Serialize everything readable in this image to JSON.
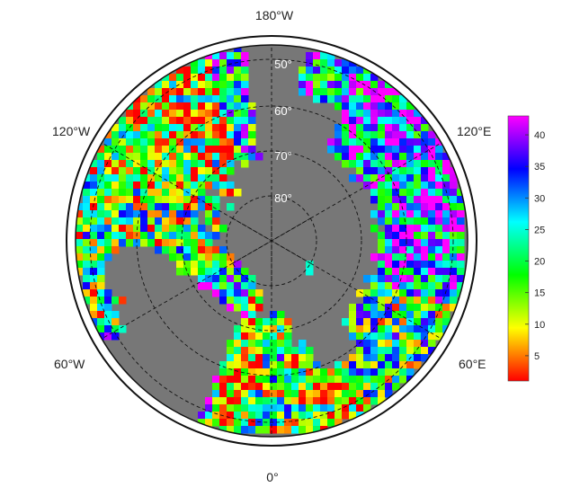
{
  "map": {
    "projection": "polar-stereographic-north",
    "ocean_color": "#777777",
    "land_no_data_color": "#777777",
    "longitude_labels": [
      {
        "key": "top",
        "text": "180°W"
      },
      {
        "key": "upper_left",
        "text": "120°W"
      },
      {
        "key": "upper_right",
        "text": "120°E"
      },
      {
        "key": "lower_left",
        "text": "60°W"
      },
      {
        "key": "lower_right",
        "text": "60°E"
      },
      {
        "key": "bottom",
        "text": "0°"
      }
    ],
    "latitude_labels": [
      "50°",
      "60°",
      "70°",
      "80°"
    ],
    "graticule": {
      "style": "dashed",
      "color": "#111111"
    }
  },
  "colorbar": {
    "min": 1,
    "max": 43,
    "ticks": [
      5,
      10,
      15,
      20,
      25,
      30,
      35,
      40
    ],
    "palette": [
      "#ff0000",
      "#ff8000",
      "#ffff00",
      "#80ff00",
      "#00ff00",
      "#00ff80",
      "#00ffff",
      "#0080ff",
      "#0000ff",
      "#8000ff",
      "#ff00ff"
    ]
  }
}
